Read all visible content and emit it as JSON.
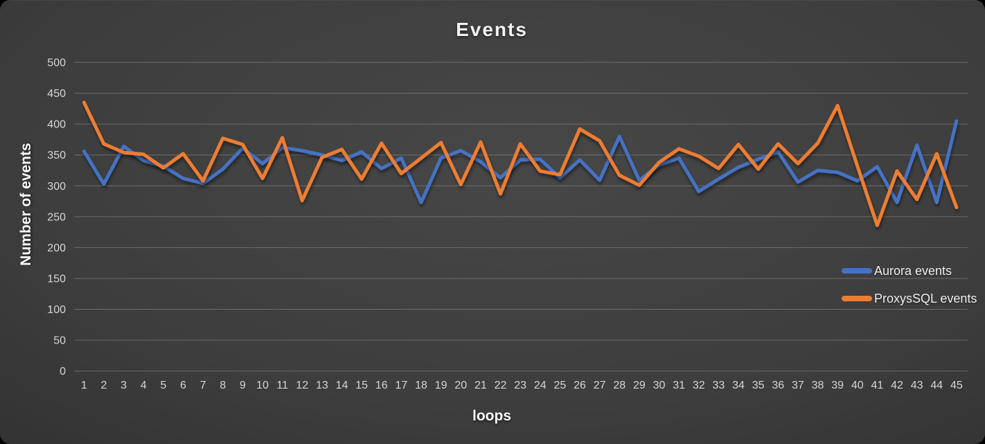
{
  "title": "Events",
  "y_axis_title": "Number of events",
  "x_axis_title": "loops",
  "legend": [
    {
      "label": "Aurora events",
      "color": "#4472C4"
    },
    {
      "label": "ProxysSQL events",
      "color": "#ED7D31"
    }
  ],
  "chart_data": {
    "type": "line",
    "title": "Events",
    "xlabel": "loops",
    "ylabel": "Number of events",
    "ylim": [
      0,
      500
    ],
    "y_ticks": [
      0,
      50,
      100,
      150,
      200,
      250,
      300,
      350,
      400,
      450,
      500
    ],
    "grid": true,
    "legend_position": "right",
    "x": [
      1,
      2,
      3,
      4,
      5,
      6,
      7,
      8,
      9,
      10,
      11,
      12,
      13,
      14,
      15,
      16,
      17,
      18,
      19,
      20,
      21,
      22,
      23,
      24,
      25,
      26,
      27,
      28,
      29,
      30,
      31,
      32,
      33,
      34,
      35,
      36,
      37,
      38,
      39,
      40,
      41,
      42,
      43,
      44,
      45
    ],
    "series": [
      {
        "name": "Aurora events",
        "color": "#4472C4",
        "values": [
          356,
          303,
          364,
          341,
          332,
          312,
          304,
          327,
          361,
          336,
          362,
          357,
          350,
          341,
          355,
          328,
          345,
          273,
          345,
          357,
          339,
          313,
          342,
          343,
          313,
          342,
          309,
          380,
          309,
          334,
          345,
          291,
          311,
          330,
          343,
          355,
          306,
          325,
          322,
          308,
          331,
          273,
          366,
          273,
          405
        ]
      },
      {
        "name": "ProxysSQL events",
        "color": "#ED7D31",
        "values": [
          435,
          368,
          354,
          351,
          329,
          352,
          308,
          377,
          367,
          312,
          378,
          276,
          346,
          359,
          311,
          369,
          320,
          345,
          370,
          302,
          371,
          287,
          368,
          324,
          318,
          392,
          373,
          317,
          301,
          338,
          360,
          348,
          328,
          367,
          327,
          368,
          336,
          369,
          430,
          332,
          236,
          324,
          278,
          352,
          265
        ]
      }
    ]
  }
}
